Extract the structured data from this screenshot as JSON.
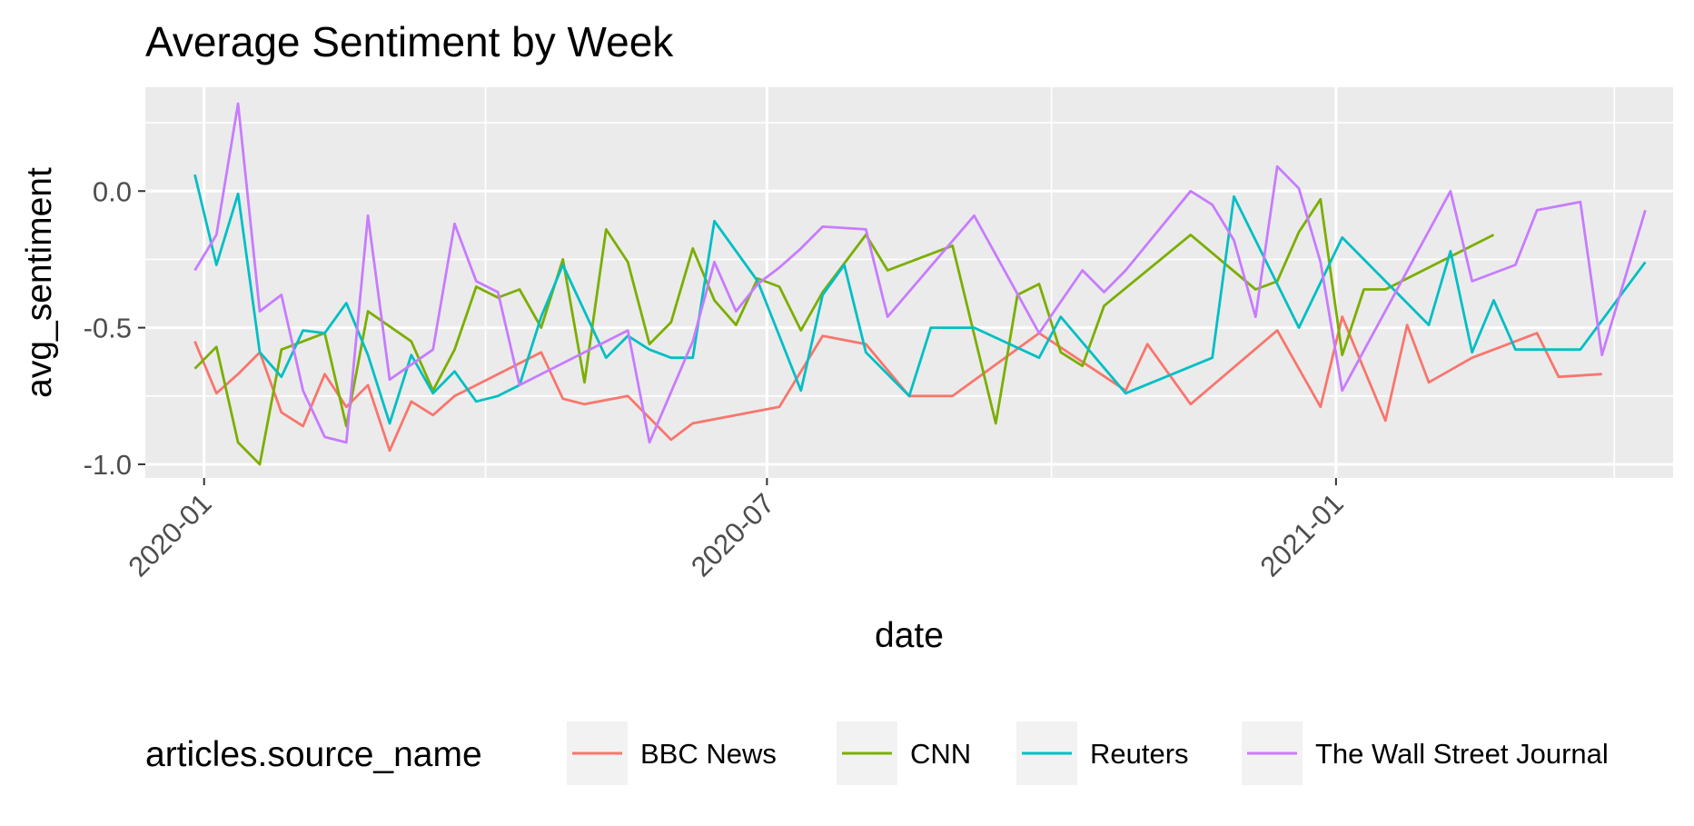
{
  "chart_data": {
    "type": "line",
    "title": "Average Sentiment by Week",
    "xlabel": "date",
    "ylabel": "avg_sentiment",
    "x_axis_type": "date",
    "xlim": [
      "2019-12-13",
      "2021-04-20"
    ],
    "ylim": [
      -1.05,
      0.38
    ],
    "x_ticks": [
      {
        "date": "2020-01-01",
        "label": "2020-01"
      },
      {
        "date": "2020-07-01",
        "label": "2020-07"
      },
      {
        "date": "2021-01-01",
        "label": "2021-01"
      }
    ],
    "x_minor_ticks": [
      "2020-04-01",
      "2020-10-01",
      "2021-04-01"
    ],
    "y_ticks": [
      {
        "value": 0.0,
        "label": "0.0"
      },
      {
        "value": -0.5,
        "label": "-0.5"
      },
      {
        "value": -1.0,
        "label": "-1.0"
      }
    ],
    "y_minor_ticks": [
      0.25,
      -0.25,
      -0.75
    ],
    "background": "#ebebeb",
    "grid": true,
    "legend_title": "articles.source_name",
    "legend_position": "bottom",
    "series": [
      {
        "name": "BBC News",
        "color": "#f8766d",
        "points": [
          [
            "2019-12-29",
            -0.55
          ],
          [
            "2020-01-05",
            -0.74
          ],
          [
            "2020-01-12",
            -0.67
          ],
          [
            "2020-01-19",
            -0.59
          ],
          [
            "2020-01-26",
            -0.81
          ],
          [
            "2020-02-02",
            -0.86
          ],
          [
            "2020-02-09",
            -0.67
          ],
          [
            "2020-02-16",
            -0.79
          ],
          [
            "2020-02-23",
            -0.71
          ],
          [
            "2020-03-01",
            -0.95
          ],
          [
            "2020-03-08",
            -0.77
          ],
          [
            "2020-03-15",
            -0.82
          ],
          [
            "2020-03-22",
            -0.75
          ],
          [
            "2020-04-19",
            -0.59
          ],
          [
            "2020-04-26",
            -0.76
          ],
          [
            "2020-05-03",
            -0.78
          ],
          [
            "2020-05-17",
            -0.75
          ],
          [
            "2020-05-31",
            -0.91
          ],
          [
            "2020-06-07",
            -0.85
          ],
          [
            "2020-07-05",
            -0.79
          ],
          [
            "2020-07-19",
            -0.53
          ],
          [
            "2020-08-02",
            -0.56
          ],
          [
            "2020-08-16",
            -0.75
          ],
          [
            "2020-08-30",
            -0.75
          ],
          [
            "2020-09-27",
            -0.52
          ],
          [
            "2020-10-25",
            -0.73
          ],
          [
            "2020-11-01",
            -0.56
          ],
          [
            "2020-11-15",
            -0.78
          ],
          [
            "2020-12-13",
            -0.51
          ],
          [
            "2020-12-27",
            -0.79
          ],
          [
            "2021-01-03",
            -0.46
          ],
          [
            "2021-01-17",
            -0.84
          ],
          [
            "2021-01-24",
            -0.49
          ],
          [
            "2021-01-31",
            -0.7
          ],
          [
            "2021-02-14",
            -0.61
          ],
          [
            "2021-03-07",
            -0.52
          ],
          [
            "2021-03-14",
            -0.68
          ],
          [
            "2021-03-28",
            -0.67
          ]
        ]
      },
      {
        "name": "CNN",
        "color": "#7cae00",
        "points": [
          [
            "2019-12-29",
            -0.65
          ],
          [
            "2020-01-05",
            -0.57
          ],
          [
            "2020-01-12",
            -0.92
          ],
          [
            "2020-01-19",
            -1.0
          ],
          [
            "2020-01-26",
            -0.58
          ],
          [
            "2020-02-09",
            -0.52
          ],
          [
            "2020-02-16",
            -0.86
          ],
          [
            "2020-02-23",
            -0.44
          ],
          [
            "2020-03-08",
            -0.55
          ],
          [
            "2020-03-15",
            -0.73
          ],
          [
            "2020-03-22",
            -0.58
          ],
          [
            "2020-03-29",
            -0.35
          ],
          [
            "2020-04-05",
            -0.39
          ],
          [
            "2020-04-12",
            -0.36
          ],
          [
            "2020-04-19",
            -0.5
          ],
          [
            "2020-04-26",
            -0.25
          ],
          [
            "2020-05-03",
            -0.7
          ],
          [
            "2020-05-10",
            -0.14
          ],
          [
            "2020-05-17",
            -0.26
          ],
          [
            "2020-05-24",
            -0.56
          ],
          [
            "2020-05-31",
            -0.48
          ],
          [
            "2020-06-07",
            -0.21
          ],
          [
            "2020-06-14",
            -0.4
          ],
          [
            "2020-06-21",
            -0.49
          ],
          [
            "2020-06-28",
            -0.32
          ],
          [
            "2020-07-05",
            -0.35
          ],
          [
            "2020-07-12",
            -0.51
          ],
          [
            "2020-07-19",
            -0.37
          ],
          [
            "2020-08-02",
            -0.16
          ],
          [
            "2020-08-09",
            -0.29
          ],
          [
            "2020-08-30",
            -0.2
          ],
          [
            "2020-09-13",
            -0.85
          ],
          [
            "2020-09-20",
            -0.38
          ],
          [
            "2020-09-27",
            -0.34
          ],
          [
            "2020-10-04",
            -0.59
          ],
          [
            "2020-10-11",
            -0.64
          ],
          [
            "2020-10-18",
            -0.42
          ],
          [
            "2020-11-15",
            -0.16
          ],
          [
            "2020-12-06",
            -0.36
          ],
          [
            "2020-12-13",
            -0.33
          ],
          [
            "2020-12-20",
            -0.15
          ],
          [
            "2020-12-27",
            -0.03
          ],
          [
            "2021-01-03",
            -0.6
          ],
          [
            "2021-01-10",
            -0.36
          ],
          [
            "2021-01-17",
            -0.36
          ],
          [
            "2021-02-21",
            -0.16
          ]
        ]
      },
      {
        "name": "Reuters",
        "color": "#00bfc4",
        "points": [
          [
            "2019-12-29",
            0.06
          ],
          [
            "2020-01-05",
            -0.27
          ],
          [
            "2020-01-12",
            -0.01
          ],
          [
            "2020-01-19",
            -0.59
          ],
          [
            "2020-01-26",
            -0.68
          ],
          [
            "2020-02-02",
            -0.51
          ],
          [
            "2020-02-09",
            -0.52
          ],
          [
            "2020-02-16",
            -0.41
          ],
          [
            "2020-02-23",
            -0.6
          ],
          [
            "2020-03-01",
            -0.85
          ],
          [
            "2020-03-08",
            -0.6
          ],
          [
            "2020-03-15",
            -0.74
          ],
          [
            "2020-03-22",
            -0.66
          ],
          [
            "2020-03-29",
            -0.77
          ],
          [
            "2020-04-05",
            -0.75
          ],
          [
            "2020-04-12",
            -0.71
          ],
          [
            "2020-04-19",
            -0.46
          ],
          [
            "2020-04-26",
            -0.27
          ],
          [
            "2020-05-10",
            -0.61
          ],
          [
            "2020-05-17",
            -0.53
          ],
          [
            "2020-05-24",
            -0.58
          ],
          [
            "2020-05-31",
            -0.61
          ],
          [
            "2020-06-07",
            -0.61
          ],
          [
            "2020-06-14",
            -0.11
          ],
          [
            "2020-06-28",
            -0.33
          ],
          [
            "2020-07-12",
            -0.73
          ],
          [
            "2020-07-19",
            -0.38
          ],
          [
            "2020-07-26",
            -0.27
          ],
          [
            "2020-08-02",
            -0.59
          ],
          [
            "2020-08-16",
            -0.75
          ],
          [
            "2020-08-23",
            -0.5
          ],
          [
            "2020-09-06",
            -0.5
          ],
          [
            "2020-09-27",
            -0.61
          ],
          [
            "2020-10-04",
            -0.46
          ],
          [
            "2020-10-25",
            -0.74
          ],
          [
            "2020-11-22",
            -0.61
          ],
          [
            "2020-11-29",
            -0.02
          ],
          [
            "2020-12-20",
            -0.5
          ],
          [
            "2021-01-03",
            -0.17
          ],
          [
            "2021-01-31",
            -0.49
          ],
          [
            "2021-02-07",
            -0.22
          ],
          [
            "2021-02-14",
            -0.59
          ],
          [
            "2021-02-21",
            -0.4
          ],
          [
            "2021-02-28",
            -0.58
          ],
          [
            "2021-03-21",
            -0.58
          ],
          [
            "2021-04-11",
            -0.26
          ]
        ]
      },
      {
        "name": "The Wall Street Journal",
        "color": "#c77cff",
        "points": [
          [
            "2019-12-29",
            -0.29
          ],
          [
            "2020-01-05",
            -0.16
          ],
          [
            "2020-01-12",
            0.32
          ],
          [
            "2020-01-19",
            -0.44
          ],
          [
            "2020-01-26",
            -0.38
          ],
          [
            "2020-02-02",
            -0.73
          ],
          [
            "2020-02-09",
            -0.9
          ],
          [
            "2020-02-16",
            -0.92
          ],
          [
            "2020-02-23",
            -0.09
          ],
          [
            "2020-03-01",
            -0.69
          ],
          [
            "2020-03-15",
            -0.58
          ],
          [
            "2020-03-22",
            -0.12
          ],
          [
            "2020-03-29",
            -0.33
          ],
          [
            "2020-04-05",
            -0.37
          ],
          [
            "2020-04-12",
            -0.71
          ],
          [
            "2020-05-17",
            -0.51
          ],
          [
            "2020-05-24",
            -0.92
          ],
          [
            "2020-06-07",
            -0.55
          ],
          [
            "2020-06-14",
            -0.26
          ],
          [
            "2020-06-21",
            -0.44
          ],
          [
            "2020-06-28",
            -0.34
          ],
          [
            "2020-07-05",
            -0.28
          ],
          [
            "2020-07-12",
            -0.21
          ],
          [
            "2020-07-19",
            -0.13
          ],
          [
            "2020-08-02",
            -0.14
          ],
          [
            "2020-08-09",
            -0.46
          ],
          [
            "2020-09-06",
            -0.09
          ],
          [
            "2020-09-27",
            -0.52
          ],
          [
            "2020-10-11",
            -0.29
          ],
          [
            "2020-10-18",
            -0.37
          ],
          [
            "2020-10-25",
            -0.29
          ],
          [
            "2020-11-15",
            0.0
          ],
          [
            "2020-11-22",
            -0.05
          ],
          [
            "2020-11-29",
            -0.18
          ],
          [
            "2020-12-06",
            -0.46
          ],
          [
            "2020-12-13",
            0.09
          ],
          [
            "2020-12-20",
            0.01
          ],
          [
            "2020-12-27",
            -0.26
          ],
          [
            "2021-01-03",
            -0.73
          ],
          [
            "2021-02-07",
            0.0
          ],
          [
            "2021-02-14",
            -0.33
          ],
          [
            "2021-02-28",
            -0.27
          ],
          [
            "2021-03-07",
            -0.07
          ],
          [
            "2021-03-21",
            -0.04
          ],
          [
            "2021-03-28",
            -0.6
          ],
          [
            "2021-04-11",
            -0.07
          ]
        ]
      }
    ]
  }
}
